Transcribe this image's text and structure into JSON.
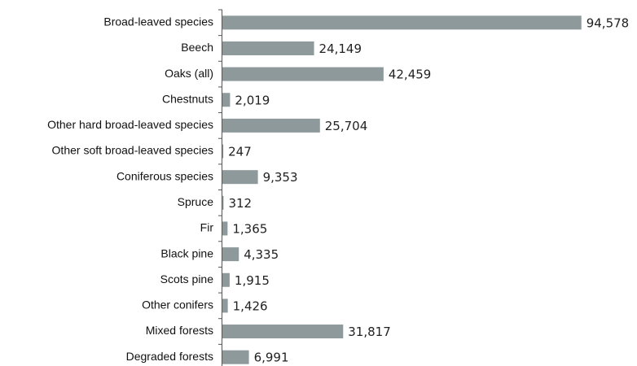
{
  "chart_data": {
    "type": "bar",
    "orientation": "horizontal",
    "categories": [
      "Broad-leaved species",
      "Beech",
      "Oaks (all)",
      "Chestnuts",
      "Other hard broad-leaved species",
      "Other soft broad-leaved species",
      "Coniferous species",
      "Spruce",
      "Fir",
      "Black pine",
      "Scots pine",
      "Other conifers",
      "Mixed forests",
      "Degraded forests"
    ],
    "values": [
      94578,
      24149,
      42459,
      2019,
      25704,
      247,
      9353,
      312,
      1365,
      4335,
      1915,
      1426,
      31817,
      6991
    ],
    "value_labels": [
      "94,578",
      "24,149",
      "42,459",
      "2,019",
      "25,704",
      "247",
      "9,353",
      "312",
      "1,365",
      "4,335",
      "1,915",
      "1,426",
      "31,817",
      "6,991"
    ],
    "color": "#8d999b",
    "xlim": [
      0,
      100000
    ]
  }
}
